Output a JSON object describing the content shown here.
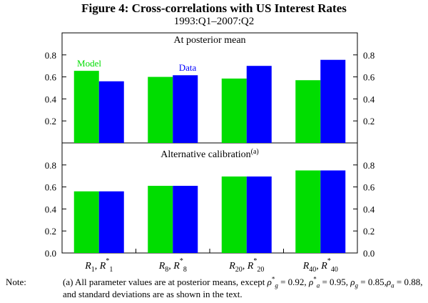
{
  "figure": {
    "title": "Figure 4: Cross-correlations with US Interest Rates",
    "subtitle": "1993:Q1–2007:Q2"
  },
  "chart_data": [
    {
      "type": "bar",
      "title": "At posterior mean",
      "categories": [
        "R1, R*1",
        "R8, R*8",
        "R20, R*20",
        "R40, R*40"
      ],
      "series": [
        {
          "name": "Model",
          "color": "#00dd00",
          "values": [
            0.655,
            0.6,
            0.585,
            0.57
          ]
        },
        {
          "name": "Data",
          "color": "#0000ff",
          "values": [
            0.56,
            0.615,
            0.7,
            0.755
          ]
        }
      ],
      "ylim": [
        0,
        1
      ],
      "yticks": [
        "0.2",
        "0.4",
        "0.6",
        "0.8"
      ],
      "legend_labels": {
        "model": "Model",
        "data": "Data"
      }
    },
    {
      "type": "bar",
      "title": "Alternative calibration",
      "title_sup": "(a)",
      "categories": [
        "R1, R*1",
        "R8, R*8",
        "R20, R*20",
        "R40, R*40"
      ],
      "series": [
        {
          "name": "Model",
          "color": "#00dd00",
          "values": [
            0.56,
            0.61,
            0.695,
            0.75
          ]
        },
        {
          "name": "Data",
          "color": "#0000ff",
          "values": [
            0.56,
            0.61,
            0.695,
            0.75
          ]
        }
      ],
      "ylim": [
        0,
        1
      ],
      "yticks": [
        "0.0",
        "0.2",
        "0.4",
        "0.6",
        "0.8"
      ]
    }
  ],
  "x_axis_labels": [
    {
      "base": "R",
      "sub": "1",
      "sep": ", ",
      "sup": "*",
      "sub2": "1"
    },
    {
      "base": "R",
      "sub": "8",
      "sep": ", ",
      "sup": "*",
      "sub2": "8"
    },
    {
      "base": "R",
      "sub": "20",
      "sep": ", ",
      "sup": "*",
      "sub2": "20"
    },
    {
      "base": "R",
      "sub": "40",
      "sep": ", ",
      "sup": "*",
      "sub2": "40"
    }
  ],
  "note": {
    "label": "Note:",
    "prefix": "(a) All parameter values are at posterior means, except ",
    "params": [
      {
        "sym": "ρ",
        "sub": "g",
        "sup": "*",
        "val": " = 0.92, "
      },
      {
        "sym": "ρ",
        "sub": "a",
        "sup": "*",
        "val": " = 0.95, "
      },
      {
        "sym": "ρ",
        "sub": "g",
        "sup": "",
        "val": " = 0.85,"
      },
      {
        "sym": "ρ",
        "sub": "a",
        "sup": "",
        "val": " = 0.88"
      }
    ],
    "suffix": ", and standard deviations are as shown in the text."
  }
}
